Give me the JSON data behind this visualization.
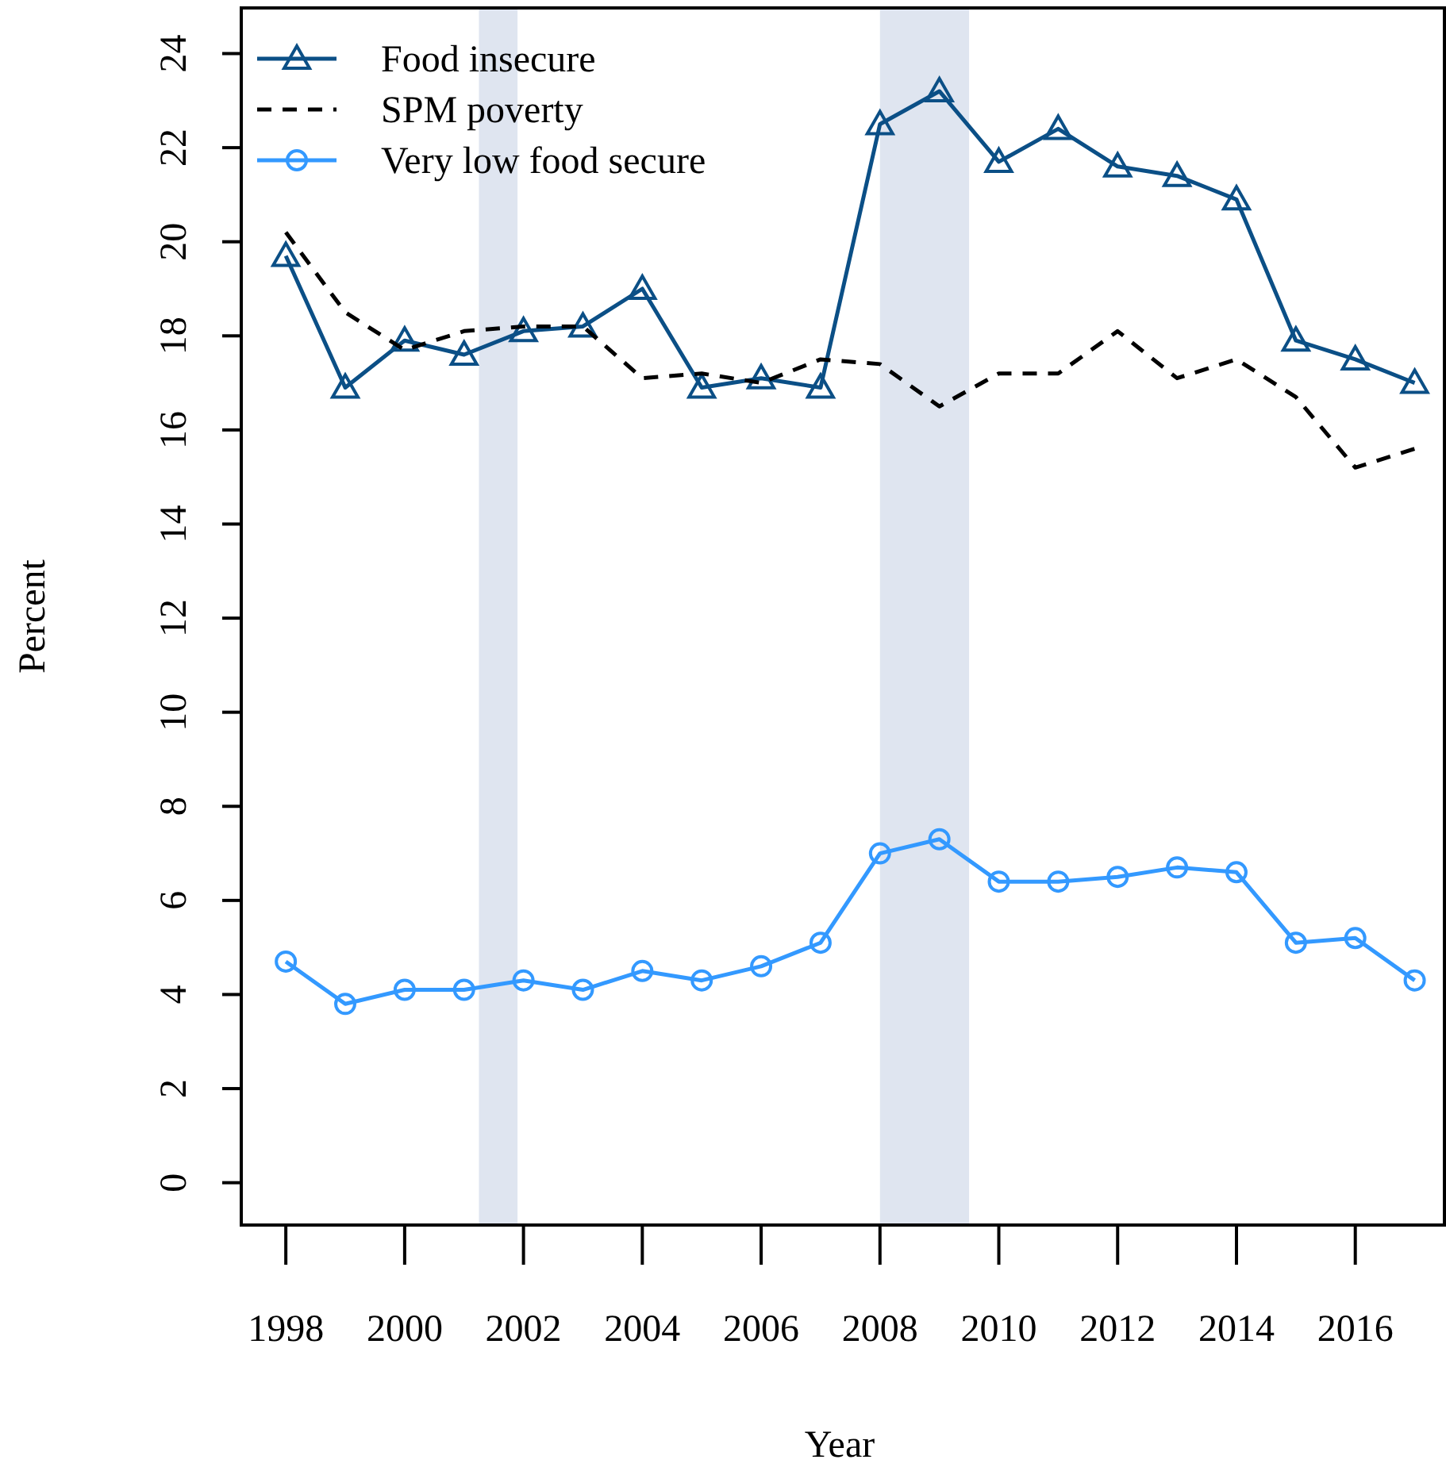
{
  "chart_data": {
    "type": "line",
    "xlabel": "Year",
    "ylabel": "Percent",
    "x": [
      1998,
      1999,
      2000,
      2001,
      2002,
      2003,
      2004,
      2005,
      2006,
      2007,
      2008,
      2009,
      2010,
      2011,
      2012,
      2013,
      2014,
      2015,
      2016,
      2017
    ],
    "series": [
      {
        "name": "Food insecure",
        "color": "#0b4f86",
        "marker": "triangle",
        "line_style": "solid",
        "values": [
          19.7,
          16.9,
          17.9,
          17.6,
          18.1,
          18.2,
          19.0,
          16.9,
          17.1,
          16.9,
          22.5,
          23.2,
          21.7,
          22.4,
          21.6,
          21.4,
          20.9,
          17.9,
          17.5,
          17.0
        ]
      },
      {
        "name": "SPM poverty",
        "color": "#000000",
        "marker": "none",
        "line_style": "dashed",
        "values": [
          20.2,
          18.5,
          17.7,
          18.1,
          18.2,
          18.2,
          17.1,
          17.2,
          17.0,
          17.5,
          17.4,
          16.5,
          17.2,
          17.2,
          18.1,
          17.1,
          17.5,
          16.7,
          15.2,
          15.6
        ]
      },
      {
        "name": "Very low food secure",
        "color": "#3399ff",
        "marker": "circle",
        "line_style": "solid",
        "values": [
          4.7,
          3.8,
          4.1,
          4.1,
          4.3,
          4.1,
          4.5,
          4.3,
          4.6,
          5.1,
          7.0,
          7.3,
          6.4,
          6.4,
          6.5,
          6.7,
          6.6,
          5.1,
          5.2,
          4.3
        ]
      }
    ],
    "bands": [
      {
        "axis": "x",
        "from": 2001.25,
        "to": 2001.9,
        "color": "#dfe5f0"
      },
      {
        "axis": "x",
        "from": 2008.0,
        "to": 2009.5,
        "color": "#dfe5f0"
      }
    ],
    "xlim": [
      1997.25,
      2017.5
    ],
    "ylim": [
      -0.9,
      24.97
    ],
    "xticks": [
      1998,
      2000,
      2002,
      2004,
      2006,
      2008,
      2010,
      2012,
      2014,
      2016
    ],
    "yticks": [
      0,
      2,
      4,
      6,
      8,
      10,
      12,
      14,
      16,
      18,
      20,
      22,
      24
    ],
    "grid": false,
    "legend": "top left"
  }
}
